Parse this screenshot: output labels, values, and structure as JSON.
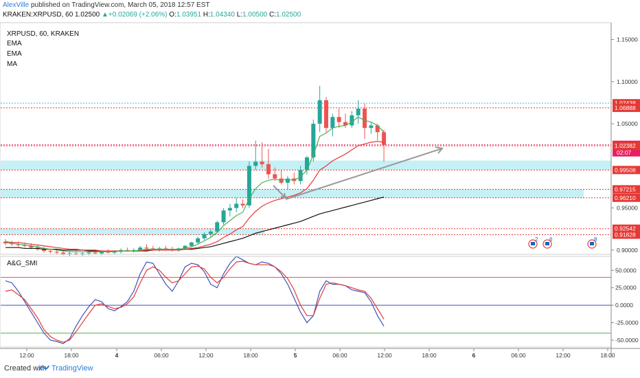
{
  "header": {
    "author": "AlexVille",
    "published": "published on TradingView.com, March 05, 2018 12:57 EST",
    "symbol": "KRAKEN:XRPUSD, 60",
    "last": "1.02500",
    "change": "+0.02069 (+2.06%)",
    "o_label": "O:",
    "o": "1.03951",
    "h_label": "H:",
    "h": "1.04340",
    "l_label": "L:",
    "l": "1.00500",
    "c_label": "C:",
    "c": "1.02500"
  },
  "legend": {
    "title": "XRPUSD, 60, KRAKEN",
    "ind1": "EMA",
    "ind2": "EMA",
    "ind3": "MA",
    "oscillator": "A&G_SMI"
  },
  "footer": {
    "created_with": "Created with",
    "brand": "TradingView"
  },
  "colors": {
    "up": "#26a69a",
    "down": "#ef5350",
    "ema_fast": "#4caf50",
    "ema_slow": "#e53935",
    "ma": "#111111",
    "zone": "#b2ebf2",
    "smi_main": "#3f51b5",
    "smi_signal": "#e53935",
    "price_tag_red": "#e53935",
    "price_tag_pink": "#e91e63"
  },
  "chart_data": [
    {
      "type": "candlestick",
      "title": "XRPUSD, 60, KRAKEN",
      "ylim": [
        0.895,
        1.17
      ],
      "x_ticks": [
        "12:00",
        "18:00",
        "4",
        "06:00",
        "12:00",
        "18:00",
        "5",
        "06:00",
        "12:00",
        "18:00",
        "6",
        "06:00",
        "12:00",
        "18:00"
      ],
      "y_ticks": [
        "1.15000",
        "1.10000",
        "1.05000",
        "0.95000",
        "0.90000"
      ],
      "price_tags": [
        {
          "value": 1.07438,
          "label": "1.07438"
        },
        {
          "value": 1.06888,
          "label": "1.06888"
        },
        {
          "value": 1.025,
          "label": "1.02500",
          "current": true
        },
        {
          "value": 1.02382,
          "label": "1.02382"
        },
        {
          "value": 0.99508,
          "label": "0.99508"
        },
        {
          "value": 0.97215,
          "label": "0.97215"
        },
        {
          "value": 0.9621,
          "label": "0.96210"
        },
        {
          "value": 0.92542,
          "label": "0.92542"
        },
        {
          "value": 0.91828,
          "label": "0.91828"
        }
      ],
      "countdown": "02:07",
      "zones": [
        [
          0.99508,
          1.00632
        ],
        [
          0.9621,
          0.97215
        ],
        [
          0.91828,
          0.92542
        ]
      ],
      "candles": [
        {
          "o": 0.91,
          "h": 0.913,
          "l": 0.906,
          "c": 0.908
        },
        {
          "o": 0.908,
          "h": 0.911,
          "l": 0.905,
          "c": 0.907
        },
        {
          "o": 0.907,
          "h": 0.91,
          "l": 0.904,
          "c": 0.906
        },
        {
          "o": 0.906,
          "h": 0.909,
          "l": 0.903,
          "c": 0.905
        },
        {
          "o": 0.905,
          "h": 0.908,
          "l": 0.901,
          "c": 0.903
        },
        {
          "o": 0.903,
          "h": 0.906,
          "l": 0.899,
          "c": 0.901
        },
        {
          "o": 0.901,
          "h": 0.904,
          "l": 0.897,
          "c": 0.899
        },
        {
          "o": 0.899,
          "h": 0.902,
          "l": 0.896,
          "c": 0.898
        },
        {
          "o": 0.898,
          "h": 0.901,
          "l": 0.895,
          "c": 0.897
        },
        {
          "o": 0.897,
          "h": 0.9,
          "l": 0.894,
          "c": 0.895
        },
        {
          "o": 0.895,
          "h": 0.899,
          "l": 0.893,
          "c": 0.896
        },
        {
          "o": 0.896,
          "h": 0.899,
          "l": 0.894,
          "c": 0.895
        },
        {
          "o": 0.895,
          "h": 0.898,
          "l": 0.893,
          "c": 0.896
        },
        {
          "o": 0.896,
          "h": 0.899,
          "l": 0.894,
          "c": 0.897
        },
        {
          "o": 0.897,
          "h": 0.9,
          "l": 0.895,
          "c": 0.896
        },
        {
          "o": 0.896,
          "h": 0.9,
          "l": 0.894,
          "c": 0.898
        },
        {
          "o": 0.898,
          "h": 0.901,
          "l": 0.896,
          "c": 0.897
        },
        {
          "o": 0.897,
          "h": 0.9,
          "l": 0.895,
          "c": 0.898
        },
        {
          "o": 0.898,
          "h": 0.902,
          "l": 0.896,
          "c": 0.9
        },
        {
          "o": 0.9,
          "h": 0.903,
          "l": 0.898,
          "c": 0.899
        },
        {
          "o": 0.899,
          "h": 0.902,
          "l": 0.897,
          "c": 0.9
        },
        {
          "o": 0.9,
          "h": 0.905,
          "l": 0.898,
          "c": 0.903
        },
        {
          "o": 0.903,
          "h": 0.907,
          "l": 0.9,
          "c": 0.902
        },
        {
          "o": 0.902,
          "h": 0.905,
          "l": 0.899,
          "c": 0.901
        },
        {
          "o": 0.901,
          "h": 0.904,
          "l": 0.898,
          "c": 0.902
        },
        {
          "o": 0.902,
          "h": 0.905,
          "l": 0.899,
          "c": 0.901
        },
        {
          "o": 0.901,
          "h": 0.904,
          "l": 0.898,
          "c": 0.9
        },
        {
          "o": 0.9,
          "h": 0.903,
          "l": 0.898,
          "c": 0.902
        },
        {
          "o": 0.902,
          "h": 0.906,
          "l": 0.9,
          "c": 0.905
        },
        {
          "o": 0.905,
          "h": 0.91,
          "l": 0.903,
          "c": 0.909
        },
        {
          "o": 0.909,
          "h": 0.916,
          "l": 0.907,
          "c": 0.914
        },
        {
          "o": 0.914,
          "h": 0.921,
          "l": 0.912,
          "c": 0.919
        },
        {
          "o": 0.919,
          "h": 0.925,
          "l": 0.915,
          "c": 0.922
        },
        {
          "o": 0.922,
          "h": 0.935,
          "l": 0.92,
          "c": 0.933
        },
        {
          "o": 0.933,
          "h": 0.95,
          "l": 0.93,
          "c": 0.947
        },
        {
          "o": 0.947,
          "h": 0.955,
          "l": 0.94,
          "c": 0.95
        },
        {
          "o": 0.95,
          "h": 0.962,
          "l": 0.945,
          "c": 0.955
        },
        {
          "o": 0.955,
          "h": 0.96,
          "l": 0.95,
          "c": 0.953
        },
        {
          "o": 0.953,
          "h": 1.005,
          "l": 0.95,
          "c": 1.0
        },
        {
          "o": 1.0,
          "h": 1.03,
          "l": 0.995,
          "c": 1.005
        },
        {
          "o": 1.005,
          "h": 1.028,
          "l": 0.998,
          "c": 1.002
        },
        {
          "o": 1.002,
          "h": 1.02,
          "l": 0.985,
          "c": 0.99
        },
        {
          "o": 0.99,
          "h": 0.998,
          "l": 0.982,
          "c": 0.985
        },
        {
          "o": 0.985,
          "h": 0.995,
          "l": 0.978,
          "c": 0.98
        },
        {
          "o": 0.98,
          "h": 0.988,
          "l": 0.972,
          "c": 0.985
        },
        {
          "o": 0.985,
          "h": 0.992,
          "l": 0.978,
          "c": 0.982
        },
        {
          "o": 0.982,
          "h": 1.0,
          "l": 0.978,
          "c": 0.995
        },
        {
          "o": 0.995,
          "h": 1.012,
          "l": 0.99,
          "c": 1.01
        },
        {
          "o": 1.01,
          "h": 1.055,
          "l": 1.005,
          "c": 1.05
        },
        {
          "o": 1.05,
          "h": 1.095,
          "l": 1.04,
          "c": 1.078
        },
        {
          "o": 1.078,
          "h": 1.082,
          "l": 1.04,
          "c": 1.045
        },
        {
          "o": 1.045,
          "h": 1.062,
          "l": 1.035,
          "c": 1.058
        },
        {
          "o": 1.058,
          "h": 1.068,
          "l": 1.045,
          "c": 1.052
        },
        {
          "o": 1.052,
          "h": 1.062,
          "l": 1.045,
          "c": 1.048
        },
        {
          "o": 1.048,
          "h": 1.065,
          "l": 1.045,
          "c": 1.06
        },
        {
          "o": 1.06,
          "h": 1.078,
          "l": 1.05,
          "c": 1.068
        },
        {
          "o": 1.068,
          "h": 1.074,
          "l": 1.032,
          "c": 1.045
        },
        {
          "o": 1.045,
          "h": 1.052,
          "l": 1.038,
          "c": 1.048
        },
        {
          "o": 1.048,
          "h": 1.05,
          "l": 1.03,
          "c": 1.04
        },
        {
          "o": 1.04,
          "h": 1.043,
          "l": 1.005,
          "c": 1.025
        }
      ],
      "indicators": {
        "EMA_fast": [
          0.909,
          0.908,
          0.907,
          0.906,
          0.905,
          0.904,
          0.902,
          0.901,
          0.9,
          0.899,
          0.898,
          0.898,
          0.898,
          0.898,
          0.898,
          0.898,
          0.898,
          0.898,
          0.899,
          0.899,
          0.899,
          0.9,
          0.901,
          0.901,
          0.901,
          0.901,
          0.901,
          0.901,
          0.902,
          0.904,
          0.907,
          0.911,
          0.915,
          0.921,
          0.929,
          0.935,
          0.941,
          0.945,
          0.961,
          0.973,
          0.98,
          0.983,
          0.984,
          0.983,
          0.984,
          0.983,
          0.987,
          0.995,
          1.013,
          1.035,
          1.039,
          1.045,
          1.047,
          1.048,
          1.052,
          1.058,
          1.054,
          1.052,
          1.048,
          1.04
        ],
        "EMA_slow": [
          0.91,
          0.909,
          0.909,
          0.908,
          0.907,
          0.906,
          0.905,
          0.904,
          0.903,
          0.902,
          0.901,
          0.901,
          0.9,
          0.9,
          0.9,
          0.899,
          0.899,
          0.899,
          0.899,
          0.899,
          0.899,
          0.899,
          0.9,
          0.9,
          0.9,
          0.9,
          0.9,
          0.9,
          0.901,
          0.902,
          0.903,
          0.905,
          0.907,
          0.91,
          0.915,
          0.919,
          0.924,
          0.928,
          0.938,
          0.946,
          0.952,
          0.956,
          0.959,
          0.961,
          0.963,
          0.965,
          0.968,
          0.973,
          0.983,
          0.995,
          1.0,
          1.006,
          1.01,
          1.014,
          1.019,
          1.024,
          1.026,
          1.028,
          1.029,
          1.028
        ],
        "MA": [
          0.903,
          0.903,
          0.903,
          0.902,
          0.902,
          0.902,
          0.901,
          0.901,
          0.901,
          0.9,
          0.9,
          0.9,
          0.9,
          0.899,
          0.899,
          0.899,
          0.899,
          0.899,
          0.899,
          0.899,
          0.899,
          0.899,
          0.899,
          0.9,
          0.9,
          0.9,
          0.9,
          0.9,
          0.901,
          0.901,
          0.902,
          0.903,
          0.904,
          0.906,
          0.908,
          0.91,
          0.912,
          0.914,
          0.917,
          0.92,
          0.922,
          0.924,
          0.926,
          0.928,
          0.93,
          0.932,
          0.934,
          0.937,
          0.94,
          0.943,
          0.945,
          0.947,
          0.949,
          0.951,
          0.953,
          0.955,
          0.957,
          0.959,
          0.961,
          0.963
        ]
      }
    },
    {
      "type": "line",
      "title": "A&G_SMI",
      "ylim": [
        -60,
        70
      ],
      "y_ticks": [
        "50.0000",
        "25.0000",
        "0.0000",
        "-25.0000",
        "-50.0000"
      ],
      "levels": [
        40,
        0,
        -40
      ],
      "series": [
        {
          "values": [
            35,
            32,
            20,
            5,
            -10,
            -25,
            -40,
            -50,
            -52,
            -55,
            -48,
            -30,
            -15,
            -2,
            8,
            5,
            -5,
            -8,
            -2,
            5,
            20,
            45,
            62,
            60,
            45,
            30,
            20,
            35,
            55,
            60,
            58,
            48,
            30,
            25,
            45,
            60,
            70,
            65,
            60,
            58,
            62,
            60,
            55,
            45,
            30,
            10,
            -10,
            -25,
            -15,
            20,
            35,
            30,
            30,
            28,
            22,
            20,
            18,
            5,
            -15,
            -30
          ]
        },
        {
          "values": [
            20,
            22,
            15,
            8,
            -5,
            -18,
            -35,
            -45,
            -50,
            -53,
            -50,
            -38,
            -25,
            -12,
            0,
            2,
            -2,
            -5,
            -3,
            2,
            12,
            32,
            50,
            55,
            50,
            40,
            32,
            35,
            45,
            55,
            56,
            52,
            40,
            32,
            40,
            52,
            62,
            63,
            60,
            58,
            58,
            58,
            55,
            48,
            38,
            22,
            0,
            -15,
            -15,
            10,
            30,
            32,
            30,
            28,
            25,
            22,
            20,
            10,
            -5,
            -20
          ]
        }
      ]
    }
  ]
}
